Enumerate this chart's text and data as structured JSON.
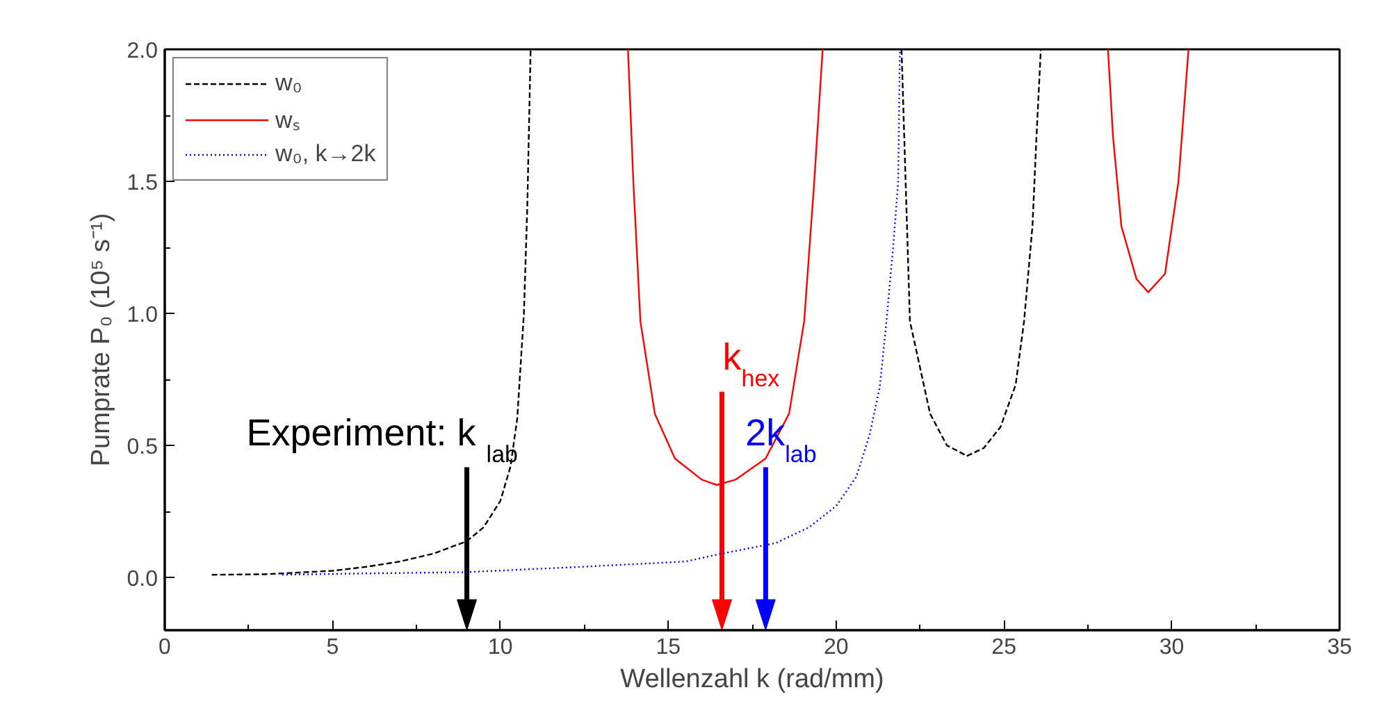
{
  "chart_data": {
    "type": "line",
    "xlabel": "Wellenzahl k (rad/mm)",
    "ylabel": "Pumprate P₀ (10⁵ s⁻¹)",
    "xlim": [
      0,
      35
    ],
    "ylim": [
      -0.2,
      2.0
    ],
    "xticks": [
      0,
      5,
      10,
      15,
      20,
      25,
      30,
      35
    ],
    "yticks": [
      {
        "value": 0,
        "label": "0.0"
      },
      {
        "value": 0.5,
        "label": "0.5"
      },
      {
        "value": 1,
        "label": "1.0"
      },
      {
        "value": 1.5,
        "label": "1.5"
      },
      {
        "value": 2,
        "label": "2.0"
      }
    ],
    "grid": false,
    "legend": "top left",
    "series": [
      {
        "name": "w₀",
        "color": "#000000",
        "line_style": "dashed",
        "x": [
          1.4,
          3,
          5,
          6,
          7,
          8,
          9,
          9.5,
          10,
          10.3,
          10.5,
          10.7,
          10.8,
          10.9,
          null,
          21.95,
          22.2,
          22.8,
          23.3,
          23.9,
          24.4,
          24.9,
          25.35,
          25.6,
          25.85,
          25.97,
          26.1
        ],
        "values": [
          0.01,
          0.012,
          0.025,
          0.04,
          0.06,
          0.09,
          0.137,
          0.19,
          0.29,
          0.42,
          0.6,
          1.0,
          1.4,
          2.0,
          null,
          2.0,
          0.97,
          0.62,
          0.5,
          0.46,
          0.49,
          0.57,
          0.73,
          0.97,
          1.33,
          1.67,
          2.0
        ]
      },
      {
        "name": "wₛ",
        "color": "#ff0000",
        "line_style": "solid",
        "x": [
          13.8,
          13.96,
          14.17,
          14.6,
          15.2,
          16.0,
          16.45,
          17.0,
          17.9,
          18.6,
          19.05,
          19.35,
          19.6,
          null,
          28.1,
          28.25,
          28.5,
          28.95,
          29.3,
          29.8,
          30.2,
          30.5
        ],
        "values": [
          2.0,
          1.5,
          0.97,
          0.62,
          0.45,
          0.37,
          0.35,
          0.37,
          0.45,
          0.62,
          0.97,
          1.5,
          2.0,
          null,
          2.0,
          1.67,
          1.33,
          1.13,
          1.08,
          1.15,
          1.5,
          2.0
        ]
      },
      {
        "name": "w₀, k→2k",
        "color": "#0000ff",
        "line_style": "dotted",
        "x": [
          3.5,
          6,
          9,
          12.4,
          15.5,
          16.6,
          18.2,
          19.2,
          20.0,
          20.6,
          21.0,
          21.3,
          21.5,
          21.7,
          21.85,
          21.9
        ],
        "values": [
          0.01,
          0.015,
          0.02,
          0.04,
          0.06,
          0.09,
          0.13,
          0.19,
          0.27,
          0.38,
          0.54,
          0.72,
          0.97,
          1.25,
          1.5,
          2.0
        ]
      }
    ],
    "ref_lines": [
      {
        "axis": "x",
        "value": 9,
        "label": "Experiment:  k$_{lab}$",
        "color": "#000000"
      },
      {
        "axis": "x",
        "value": 16.6,
        "label": "k$_{hex}$",
        "color": "#ff0000"
      },
      {
        "axis": "x",
        "value": 17.9,
        "label": "2k$_{lab}$",
        "color": "#0000ff"
      }
    ]
  }
}
